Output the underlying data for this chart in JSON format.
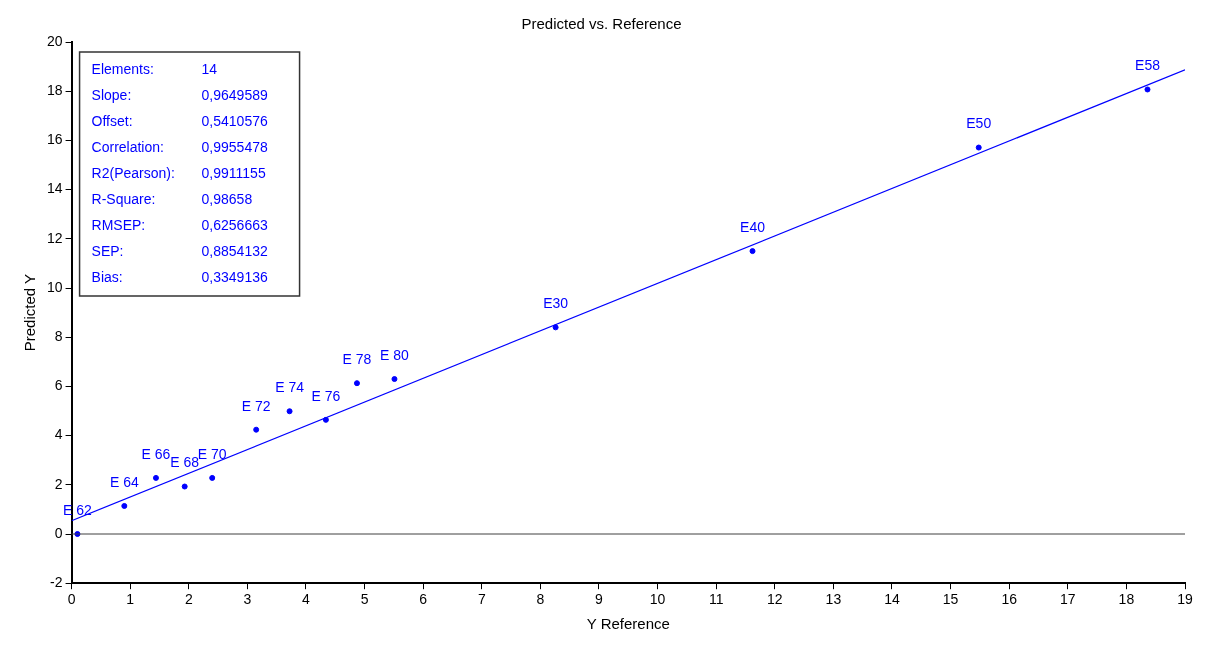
{
  "chart_data": {
    "type": "scatter",
    "title": "Predicted vs. Reference",
    "xlabel": "Y Reference",
    "ylabel": "Predicted Y",
    "xlim": [
      0,
      19
    ],
    "xticks": [
      0,
      1,
      2,
      3,
      4,
      5,
      6,
      7,
      8,
      9,
      10,
      11,
      12,
      13,
      14,
      15,
      16,
      17,
      18,
      19
    ],
    "ylim": [
      -2,
      20
    ],
    "yticks": [
      -2,
      0,
      2,
      4,
      6,
      8,
      10,
      12,
      14,
      16,
      18,
      20
    ],
    "grid": false,
    "legend": false,
    "series": [
      {
        "type": "scatter",
        "marker": "circle",
        "color": "#0000ff",
        "x": [
          0.1,
          0.9,
          1.44,
          1.93,
          2.4,
          3.15,
          3.72,
          4.34,
          4.87,
          5.51,
          8.26,
          11.62,
          15.48,
          18.36
        ],
        "values": [
          0.0,
          1.14,
          2.28,
          1.93,
          2.28,
          4.24,
          4.99,
          4.64,
          6.13,
          6.3,
          8.4,
          11.5,
          15.71,
          18.07
        ]
      },
      {
        "type": "line",
        "marker": "none",
        "line_style": "solid",
        "color": "#0000ff",
        "x": [
          0,
          19
        ],
        "values": [
          0.54,
          18.87
        ]
      }
    ],
    "ref_lines": [
      {
        "axis": "y",
        "value": 0,
        "color": "#404040"
      }
    ],
    "annotations": [
      {
        "text": "E 62",
        "x": 0.1,
        "y": 0.0
      },
      {
        "text": "E 64",
        "x": 0.9,
        "y": 1.14
      },
      {
        "text": "E 66",
        "x": 1.44,
        "y": 2.28
      },
      {
        "text": "E 68",
        "x": 1.93,
        "y": 1.93
      },
      {
        "text": "E 70",
        "x": 2.4,
        "y": 2.28
      },
      {
        "text": "E 72",
        "x": 3.15,
        "y": 4.24
      },
      {
        "text": "E 74",
        "x": 3.72,
        "y": 4.99
      },
      {
        "text": "E 76",
        "x": 4.34,
        "y": 4.64
      },
      {
        "text": "E 78",
        "x": 4.87,
        "y": 6.13
      },
      {
        "text": "E 80",
        "x": 5.51,
        "y": 6.3
      },
      {
        "text": "E30",
        "x": 8.26,
        "y": 8.4
      },
      {
        "text": "E40",
        "x": 11.62,
        "y": 11.5
      },
      {
        "text": "E50",
        "x": 15.48,
        "y": 15.71
      },
      {
        "text": "E58",
        "x": 18.36,
        "y": 18.07
      },
      "Elements:",
      "14",
      "Slope:",
      "0,9649589",
      "Offset:",
      "0,5410576",
      "Correlation:",
      "0,9955478",
      "R2(Pearson):",
      "0,9911155",
      "R-Square:",
      "0,98658",
      "RMSEP:",
      "0,6256663",
      "SEP:",
      "0,8854132",
      "Bias:",
      "0,3349136"
    ]
  }
}
